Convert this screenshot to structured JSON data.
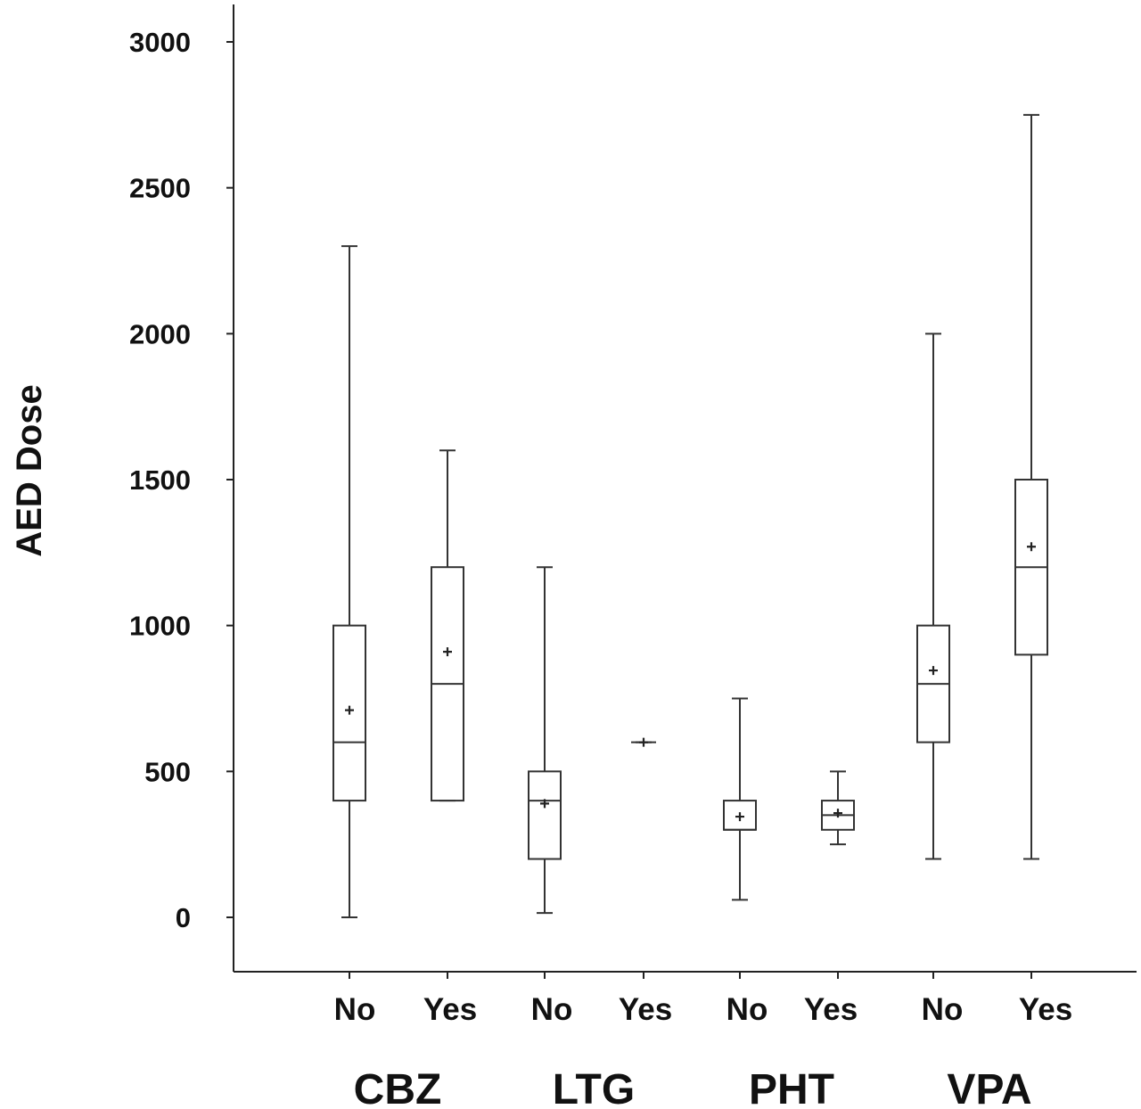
{
  "chart_data": {
    "type": "box",
    "title": "",
    "xlabel": "",
    "ylabel": "AED Dose",
    "ylim": [
      -200,
      3150
    ],
    "yticks": [
      0,
      500,
      1000,
      1500,
      2000,
      2500,
      3000
    ],
    "ytick_labels": [
      "0",
      "500",
      "1000",
      "1500",
      "2000",
      "2500",
      "3000"
    ],
    "groups": [
      "CBZ",
      "LTG",
      "PHT",
      "VPA"
    ],
    "categories": [
      "No",
      "Yes",
      "No",
      "Yes",
      "No",
      "Yes",
      "No",
      "Yes"
    ],
    "boxes": [
      {
        "group": "CBZ",
        "label": "No",
        "min": 0,
        "q1": 400,
        "median": 600,
        "q3": 1000,
        "max": 2300,
        "mean": 710
      },
      {
        "group": "CBZ",
        "label": "Yes",
        "min": 400,
        "q1": 400,
        "median": 800,
        "q3": 1200,
        "max": 1600,
        "mean": 910
      },
      {
        "group": "LTG",
        "label": "No",
        "min": 15,
        "q1": 200,
        "median": 400,
        "q3": 500,
        "max": 1200,
        "mean": 390
      },
      {
        "group": "LTG",
        "label": "Yes",
        "min": 600,
        "q1": 600,
        "median": 600,
        "q3": 600,
        "max": 600,
        "mean": 600
      },
      {
        "group": "PHT",
        "label": "No",
        "min": 60,
        "q1": 300,
        "median": 300,
        "q3": 400,
        "max": 750,
        "mean": 345
      },
      {
        "group": "PHT",
        "label": "Yes",
        "min": 250,
        "q1": 300,
        "median": 350,
        "q3": 400,
        "max": 500,
        "mean": 357
      },
      {
        "group": "VPA",
        "label": "No",
        "min": 200,
        "q1": 600,
        "median": 800,
        "q3": 1000,
        "max": 2000,
        "mean": 846
      },
      {
        "group": "VPA",
        "label": "Yes",
        "min": 200,
        "q1": 900,
        "median": 1200,
        "q3": 1500,
        "max": 2750,
        "mean": 1270
      }
    ],
    "grid": false,
    "legend": "none"
  }
}
